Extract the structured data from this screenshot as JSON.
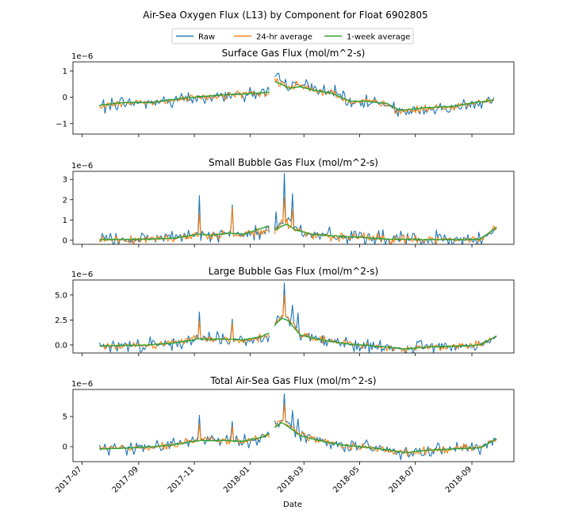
{
  "figure": {
    "title": "Air-Sea Oxygen Flux (L13) by Component for Float 6902805",
    "xlabel": "Date",
    "legend": [
      {
        "label": "Raw",
        "color": "#1f77b4"
      },
      {
        "label": "24-hr average",
        "color": "#ff7f0e"
      },
      {
        "label": "1-week average",
        "color": "#2ca02c"
      }
    ],
    "x_ticks": [
      "2017-07",
      "2017-09",
      "2017-11",
      "2018-01",
      "2018-03",
      "2018-05",
      "2018-07",
      "2018-09"
    ]
  },
  "chart_data": [
    {
      "type": "line",
      "title": "Surface Gas Flux (mol/m^2-s)",
      "offset_label": "1e−6",
      "xlim": [
        "2017-06-21",
        "2018-10-17"
      ],
      "ylim": [
        -1.4,
        1.35
      ],
      "y_ticks": [
        {
          "v": 1,
          "l": "1"
        },
        {
          "v": 0,
          "l": "0"
        },
        {
          "v": -1,
          "l": "−1"
        }
      ],
      "gap": [
        "2018-01-22",
        "2018-01-28"
      ],
      "x": [
        "2017-07-20",
        "2017-08-15",
        "2017-09-15",
        "2017-10-15",
        "2017-11-15",
        "2017-12-10",
        "2018-01-05",
        "2018-01-22",
        "2018-01-28",
        "2018-02-05",
        "2018-02-12",
        "2018-02-25",
        "2018-03-15",
        "2018-04-01",
        "2018-04-20",
        "2018-05-10",
        "2018-06-01",
        "2018-06-15",
        "2018-07-10",
        "2018-08-10",
        "2018-09-05",
        "2018-09-25"
      ],
      "series": [
        {
          "name": "Raw",
          "values": [
            -0.35,
            -0.2,
            -0.2,
            -0.1,
            0.0,
            0.1,
            0.15,
            0.2,
            0.7,
            0.6,
            0.4,
            0.5,
            0.25,
            0.2,
            -0.2,
            -0.15,
            -0.3,
            -0.6,
            -0.5,
            -0.4,
            -0.2,
            -0.1
          ],
          "noise": 0.35
        },
        {
          "name": "24-hr average",
          "values": [
            -0.35,
            -0.2,
            -0.2,
            -0.1,
            0.0,
            0.1,
            0.15,
            0.2,
            0.65,
            0.55,
            0.4,
            0.45,
            0.25,
            0.2,
            -0.2,
            -0.15,
            -0.3,
            -0.55,
            -0.45,
            -0.35,
            -0.2,
            -0.1
          ],
          "noise": 0.2
        },
        {
          "name": "1-week average",
          "values": [
            -0.3,
            -0.2,
            -0.2,
            -0.05,
            0.05,
            0.1,
            0.15,
            0.2,
            0.6,
            0.5,
            0.35,
            0.4,
            0.25,
            0.15,
            -0.15,
            -0.15,
            -0.25,
            -0.5,
            -0.4,
            -0.35,
            -0.2,
            -0.1
          ],
          "noise": 0.05
        }
      ]
    },
    {
      "type": "line",
      "title": "Small Bubble Gas Flux (mol/m^2-s)",
      "offset_label": "1e−6",
      "xlim": [
        "2017-06-21",
        "2018-10-17"
      ],
      "ylim": [
        -0.2,
        3.4
      ],
      "y_ticks": [
        {
          "v": 3,
          "l": "3"
        },
        {
          "v": 2,
          "l": "2"
        },
        {
          "v": 1,
          "l": "1"
        },
        {
          "v": 0,
          "l": "0"
        }
      ],
      "gap": [
        "2018-01-22",
        "2018-01-28"
      ],
      "x": [
        "2017-07-20",
        "2017-09-10",
        "2017-10-10",
        "2017-11-05",
        "2017-11-20",
        "2017-12-10",
        "2017-12-25",
        "2018-01-15",
        "2018-01-22",
        "2018-01-28",
        "2018-02-05",
        "2018-02-10",
        "2018-02-20",
        "2018-03-10",
        "2018-04-10",
        "2018-05-01",
        "2018-06-01",
        "2018-07-15",
        "2018-08-20",
        "2018-09-10",
        "2018-09-28"
      ],
      "series": [
        {
          "name": "Raw",
          "values": [
            0.03,
            0.05,
            0.1,
            0.3,
            0.2,
            0.35,
            0.2,
            0.5,
            0.6,
            0.4,
            0.8,
            1.0,
            0.6,
            0.3,
            0.15,
            0.15,
            0.05,
            0.03,
            0.03,
            0.05,
            0.6
          ],
          "noise": 0.5,
          "spikes": [
            [
              "2017-11-06",
              2.2
            ],
            [
              "2017-12-12",
              1.75
            ],
            [
              "2018-02-08",
              3.3
            ],
            [
              "2018-02-17",
              2.3
            ],
            [
              "2018-01-30",
              1.4
            ]
          ]
        },
        {
          "name": "24-hr average",
          "values": [
            0.03,
            0.05,
            0.1,
            0.3,
            0.2,
            0.35,
            0.2,
            0.5,
            0.6,
            0.4,
            0.8,
            0.9,
            0.5,
            0.3,
            0.15,
            0.15,
            0.05,
            0.03,
            0.03,
            0.05,
            0.6
          ],
          "noise": 0.3,
          "spikes": [
            [
              "2017-11-06",
              1.3
            ],
            [
              "2017-12-12",
              1.6
            ],
            [
              "2018-02-08",
              2.1
            ],
            [
              "2018-02-17",
              1.5
            ]
          ]
        },
        {
          "name": "1-week average",
          "values": [
            0.03,
            0.05,
            0.1,
            0.3,
            0.25,
            0.35,
            0.3,
            0.6,
            0.7,
            0.5,
            0.7,
            0.8,
            0.5,
            0.3,
            0.2,
            0.15,
            0.05,
            0.03,
            0.03,
            0.05,
            0.65
          ],
          "noise": 0.05
        }
      ]
    },
    {
      "type": "line",
      "title": "Large Bubble Gas Flux (mol/m^2-s)",
      "offset_label": "1e−6",
      "xlim": [
        "2017-06-21",
        "2018-10-17"
      ],
      "ylim": [
        -0.8,
        6.5
      ],
      "y_ticks": [
        {
          "v": 5,
          "l": "5.0"
        },
        {
          "v": 2.5,
          "l": "2.5"
        },
        {
          "v": 0,
          "l": "0.0"
        }
      ],
      "gap": [
        "2018-01-22",
        "2018-01-28"
      ],
      "x": [
        "2017-07-20",
        "2017-09-10",
        "2017-10-10",
        "2017-11-05",
        "2017-12-01",
        "2017-12-25",
        "2018-01-15",
        "2018-01-22",
        "2018-01-28",
        "2018-02-05",
        "2018-02-12",
        "2018-02-25",
        "2018-03-15",
        "2018-04-10",
        "2018-05-01",
        "2018-06-01",
        "2018-06-20",
        "2018-07-15",
        "2018-08-20",
        "2018-09-10",
        "2018-09-28"
      ],
      "series": [
        {
          "name": "Raw",
          "values": [
            -0.1,
            0.0,
            0.2,
            0.7,
            0.6,
            0.4,
            0.8,
            1.0,
            2.0,
            3.0,
            2.8,
            1.0,
            0.6,
            0.2,
            0.0,
            -0.2,
            -0.4,
            -0.2,
            -0.1,
            0.0,
            0.8
          ],
          "noise": 0.9,
          "spikes": [
            [
              "2017-11-06",
              3.3
            ],
            [
              "2017-12-12",
              2.6
            ],
            [
              "2018-02-07",
              6.2
            ],
            [
              "2018-02-16",
              4.0
            ],
            [
              "2018-02-22",
              3.2
            ]
          ]
        },
        {
          "name": "24-hr average",
          "values": [
            -0.1,
            0.0,
            0.2,
            0.7,
            0.6,
            0.4,
            0.8,
            1.0,
            2.0,
            3.0,
            2.7,
            1.0,
            0.6,
            0.2,
            0.0,
            -0.2,
            -0.4,
            -0.2,
            -0.1,
            0.0,
            0.9
          ],
          "noise": 0.5,
          "spikes": [
            [
              "2017-11-06",
              2.4
            ],
            [
              "2017-12-12",
              2.2
            ],
            [
              "2018-02-07",
              5.0
            ]
          ]
        },
        {
          "name": "1-week average",
          "values": [
            -0.1,
            0.0,
            0.2,
            0.6,
            0.6,
            0.5,
            0.9,
            1.2,
            2.0,
            2.7,
            2.4,
            1.0,
            0.6,
            0.2,
            0.0,
            -0.2,
            -0.4,
            -0.2,
            -0.1,
            0.0,
            0.9
          ],
          "noise": 0.1
        }
      ]
    },
    {
      "type": "line",
      "title": "Total Air-Sea Gas Flux (mol/m^2-s)",
      "offset_label": "1e−6",
      "xlim": [
        "2017-06-21",
        "2018-10-17"
      ],
      "ylim": [
        -2.5,
        9.5
      ],
      "y_ticks": [
        {
          "v": 5,
          "l": "5"
        },
        {
          "v": 0,
          "l": "0"
        }
      ],
      "gap": [
        "2018-01-22",
        "2018-01-28"
      ],
      "x": [
        "2017-07-20",
        "2017-09-10",
        "2017-10-10",
        "2017-11-05",
        "2017-12-01",
        "2017-12-25",
        "2018-01-15",
        "2018-01-22",
        "2018-01-28",
        "2018-02-05",
        "2018-02-12",
        "2018-02-25",
        "2018-03-15",
        "2018-04-10",
        "2018-05-01",
        "2018-06-01",
        "2018-06-20",
        "2018-07-15",
        "2018-08-20",
        "2018-09-10",
        "2018-09-28"
      ],
      "series": [
        {
          "name": "Raw",
          "values": [
            -0.4,
            -0.1,
            0.3,
            1.2,
            1.0,
            0.8,
            1.5,
            2.0,
            3.5,
            4.5,
            3.8,
            2.0,
            1.2,
            0.3,
            0.0,
            -0.6,
            -1.2,
            -0.6,
            -0.3,
            -0.2,
            1.2
          ],
          "noise": 1.4,
          "spikes": [
            [
              "2017-11-06",
              5.2
            ],
            [
              "2017-12-12",
              4.2
            ],
            [
              "2018-02-07",
              8.8
            ],
            [
              "2018-02-16",
              6.0
            ],
            [
              "2018-02-22",
              4.6
            ],
            [
              "2018-06-15",
              -2.2
            ]
          ]
        },
        {
          "name": "24-hr average",
          "values": [
            -0.4,
            -0.1,
            0.3,
            1.2,
            1.0,
            0.8,
            1.5,
            2.0,
            3.5,
            4.5,
            3.7,
            2.0,
            1.2,
            0.3,
            0.0,
            -0.6,
            -1.1,
            -0.6,
            -0.3,
            -0.2,
            1.3
          ],
          "noise": 0.8,
          "spikes": [
            [
              "2017-11-06",
              3.8
            ],
            [
              "2017-12-12",
              3.4
            ],
            [
              "2018-02-07",
              7.0
            ]
          ]
        },
        {
          "name": "1-week average",
          "values": [
            -0.4,
            -0.1,
            0.3,
            1.0,
            1.0,
            0.9,
            1.6,
            2.2,
            3.2,
            4.0,
            3.3,
            1.8,
            1.1,
            0.3,
            0.0,
            -0.5,
            -1.0,
            -0.6,
            -0.3,
            -0.2,
            1.3
          ],
          "noise": 0.15
        }
      ]
    }
  ]
}
